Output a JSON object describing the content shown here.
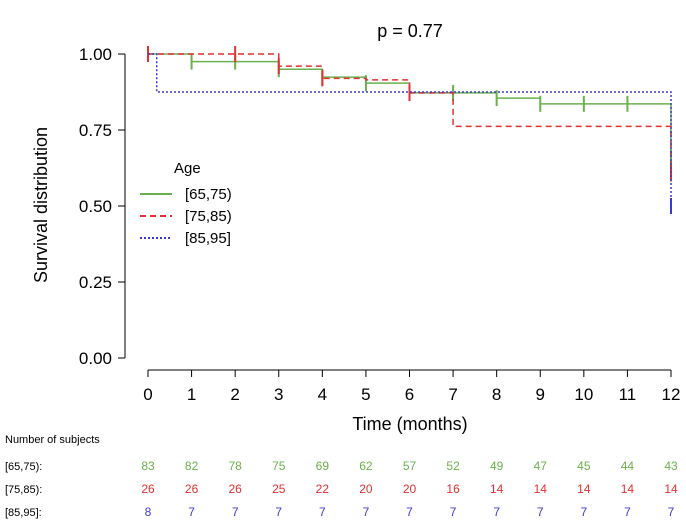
{
  "chart_data": {
    "type": "line",
    "subtype": "kaplan-meier step",
    "title": "p = 0.77",
    "xlabel": "Time (months)",
    "ylabel": "Survival distribution",
    "xlim": [
      0,
      12
    ],
    "ylim": [
      0,
      1
    ],
    "x_ticks": [
      "0",
      "1",
      "2",
      "3",
      "4",
      "5",
      "6",
      "7",
      "8",
      "9",
      "10",
      "11",
      "12"
    ],
    "y_ticks": [
      "0.00",
      "0.25",
      "0.50",
      "0.75",
      "1.00"
    ],
    "grid": false,
    "legend": {
      "title": "Age",
      "position": "left-middle",
      "entries": [
        {
          "label": "[65,75)",
          "color": "#6ab04c",
          "dash": "solid"
        },
        {
          "label": "[75,85)",
          "color": "#e03030",
          "dash": "dashed"
        },
        {
          "label": "[85,95]",
          "color": "#3a3ad0",
          "dash": "dotted"
        }
      ]
    },
    "series": [
      {
        "name": "[65,75)",
        "color": "#6ab04c",
        "dash": "solid",
        "steps": [
          [
            0,
            1.0
          ],
          [
            1,
            0.975
          ],
          [
            3,
            0.95
          ],
          [
            4,
            0.924
          ],
          [
            5,
            0.904
          ],
          [
            6,
            0.872
          ],
          [
            8,
            0.855
          ],
          [
            9,
            0.836
          ],
          [
            12,
            0.836
          ],
          [
            12,
            0.63
          ]
        ],
        "censor_x": [
          0,
          1,
          2,
          3,
          4,
          5,
          6,
          7,
          8,
          9,
          10,
          11,
          12
        ]
      },
      {
        "name": "[75,85)",
        "color": "#e03030",
        "dash": "dashed",
        "steps": [
          [
            0,
            1.0
          ],
          [
            3,
            0.96
          ],
          [
            4,
            0.92
          ],
          [
            5,
            0.915
          ],
          [
            6,
            0.872
          ],
          [
            7,
            0.762
          ],
          [
            12,
            0.762
          ],
          [
            12,
            0.58
          ]
        ],
        "censor_x": [
          0,
          2,
          3,
          4,
          6,
          12
        ]
      },
      {
        "name": "[85,95]",
        "color": "#3a3ad0",
        "dash": "dotted",
        "steps": [
          [
            0,
            1.0
          ],
          [
            0.2,
            0.875
          ],
          [
            12,
            0.875
          ],
          [
            12,
            0.47
          ]
        ],
        "censor_x": [
          12
        ]
      }
    ],
    "risk_table": {
      "title": "Number of subjects",
      "times": [
        0,
        1,
        2,
        3,
        4,
        5,
        6,
        7,
        8,
        9,
        10,
        11,
        12
      ],
      "rows": [
        {
          "label": "[65,75):",
          "color": "#6ab04c",
          "values": [
            "83",
            "82",
            "78",
            "75",
            "69",
            "62",
            "57",
            "52",
            "49",
            "47",
            "45",
            "44",
            "43"
          ]
        },
        {
          "label": "[75,85):",
          "color": "#e03030",
          "values": [
            "26",
            "26",
            "26",
            "25",
            "22",
            "20",
            "20",
            "16",
            "14",
            "14",
            "14",
            "14",
            "14"
          ]
        },
        {
          "label": "[85,95]:",
          "color": "#3a3ad0",
          "values": [
            "8",
            "7",
            "7",
            "7",
            "7",
            "7",
            "7",
            "7",
            "7",
            "7",
            "7",
            "7",
            "7"
          ]
        }
      ]
    }
  }
}
